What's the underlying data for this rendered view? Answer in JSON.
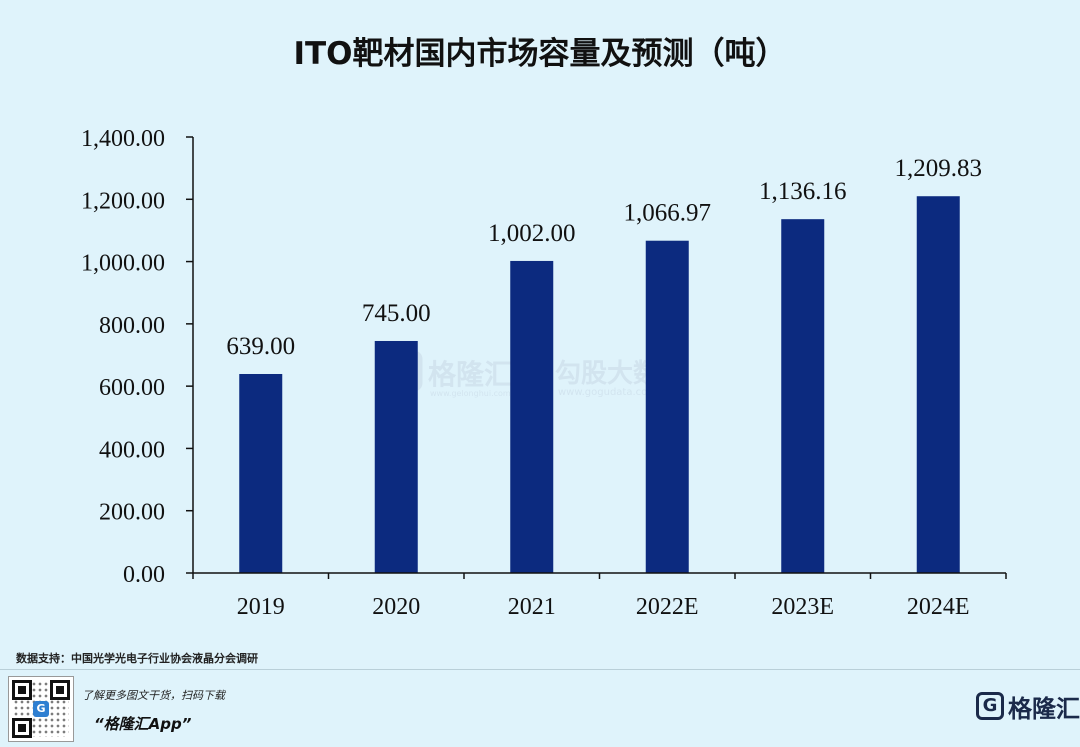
{
  "title": "ITO靶材国内市场容量及预测（吨）",
  "chart_data": {
    "type": "bar",
    "title": "ITO靶材国内市场容量及预测（吨）",
    "categories": [
      "2019",
      "2020",
      "2021",
      "2022E",
      "2023E",
      "2024E"
    ],
    "values": [
      639.0,
      745.0,
      1002.0,
      1066.97,
      1136.16,
      1209.83
    ],
    "value_labels": [
      "639.00",
      "745.00",
      "1,002.00",
      "1,066.97",
      "1,136.16",
      "1,209.83"
    ],
    "yticks": [
      "0.00",
      "200.00",
      "400.00",
      "600.00",
      "800.00",
      "1,000.00",
      "1,200.00",
      "1,400.00"
    ],
    "ylim": [
      0,
      1400
    ],
    "xlabel": "",
    "ylabel": "",
    "grid": false,
    "bar_color": "#0c2a7f"
  },
  "watermark": {
    "left_brand": "格隆汇",
    "left_url": "www.gelonghui.com",
    "right_brand": "勾股大数据",
    "right_url": "www.gogudata.com"
  },
  "source": "数据支持：中国光学光电子行业协会液晶分会调研",
  "footer": {
    "promo_line": "了解更多图文干货，扫码下载",
    "app_name": "“格隆汇App”",
    "brand_name": "格隆汇",
    "brand_icon": "g-logo-icon",
    "qr_icon": "qr-code-icon"
  }
}
